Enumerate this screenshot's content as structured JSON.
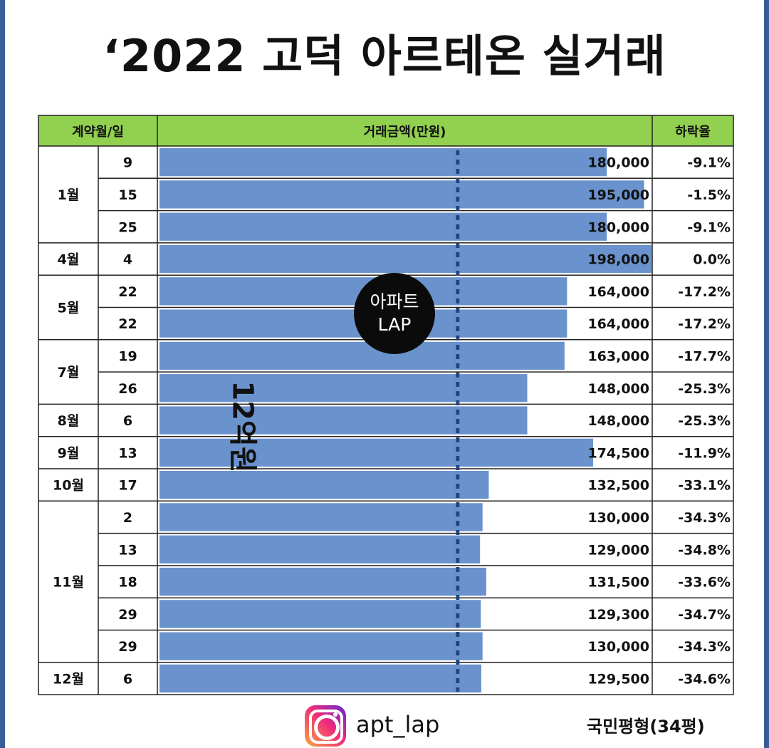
{
  "title": "‘2022 고덕 아르테온 실거래",
  "headers": {
    "date": "계약월/일",
    "amount": "거래금액(만원)",
    "drop": "하락율"
  },
  "reference_label": "12억원",
  "badge": {
    "line1": "아파트",
    "line2": "LAP"
  },
  "footer": {
    "handle": "apt_lap",
    "note": "국민평형(34평)",
    "icon": "instagram-icon"
  },
  "colors": {
    "header_bg": "#92d050",
    "bar": "#6a92cc",
    "frame": "#3a5d9a"
  },
  "months": [
    {
      "label": "1월",
      "rows": 3
    },
    {
      "label": "4월",
      "rows": 1
    },
    {
      "label": "5월",
      "rows": 2
    },
    {
      "label": "7월",
      "rows": 2
    },
    {
      "label": "8월",
      "rows": 1
    },
    {
      "label": "9월",
      "rows": 1
    },
    {
      "label": "10월",
      "rows": 1
    },
    {
      "label": "11월",
      "rows": 5
    },
    {
      "label": "12월",
      "rows": 1
    }
  ],
  "chart_data": {
    "type": "bar",
    "orientation": "horizontal",
    "unit": "만원",
    "xlim": [
      0,
      198000
    ],
    "reference_line": 120000,
    "rows": [
      {
        "day": "9",
        "value": 180000,
        "value_label": "180,000",
        "drop": "-9.1%"
      },
      {
        "day": "15",
        "value": 195000,
        "value_label": "195,000",
        "drop": "-1.5%"
      },
      {
        "day": "25",
        "value": 180000,
        "value_label": "180,000",
        "drop": "-9.1%"
      },
      {
        "day": "4",
        "value": 198000,
        "value_label": "198,000",
        "drop": "0.0%"
      },
      {
        "day": "22",
        "value": 164000,
        "value_label": "164,000",
        "drop": "-17.2%"
      },
      {
        "day": "22",
        "value": 164000,
        "value_label": "164,000",
        "drop": "-17.2%"
      },
      {
        "day": "19",
        "value": 163000,
        "value_label": "163,000",
        "drop": "-17.7%"
      },
      {
        "day": "26",
        "value": 148000,
        "value_label": "148,000",
        "drop": "-25.3%"
      },
      {
        "day": "6",
        "value": 148000,
        "value_label": "148,000",
        "drop": "-25.3%"
      },
      {
        "day": "13",
        "value": 174500,
        "value_label": "174,500",
        "drop": "-11.9%"
      },
      {
        "day": "17",
        "value": 132500,
        "value_label": "132,500",
        "drop": "-33.1%"
      },
      {
        "day": "2",
        "value": 130000,
        "value_label": "130,000",
        "drop": "-34.3%"
      },
      {
        "day": "13",
        "value": 129000,
        "value_label": "129,000",
        "drop": "-34.8%"
      },
      {
        "day": "18",
        "value": 131500,
        "value_label": "131,500",
        "drop": "-33.6%"
      },
      {
        "day": "29",
        "value": 129300,
        "value_label": "129,300",
        "drop": "-34.7%"
      },
      {
        "day": "29",
        "value": 130000,
        "value_label": "130,000",
        "drop": "-34.3%"
      },
      {
        "day": "6",
        "value": 129500,
        "value_label": "129,500",
        "drop": "-34.6%"
      }
    ]
  }
}
